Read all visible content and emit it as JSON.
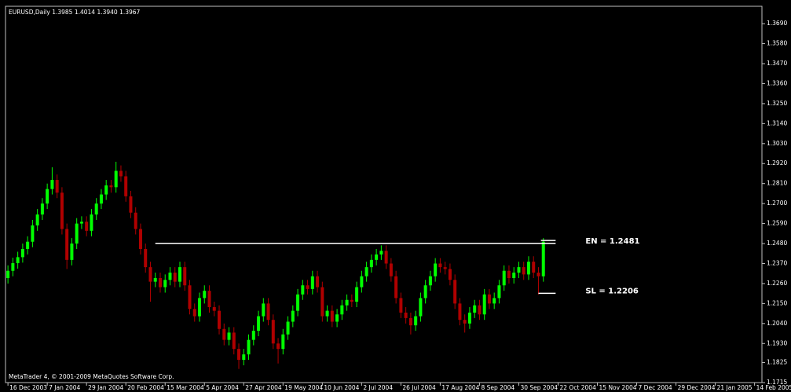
{
  "chart_data": {
    "type": "candlestick",
    "header": "EURUSD,Daily  1.3985 1.4014 1.3940 1.3967",
    "footer": "MetaTrader 4, © 2001-2009 MetaQuotes Software Corp.",
    "up_color": "#00ff00",
    "down_color": "#b00000",
    "line_color": "#ffffff",
    "xlim": [
      -1,
      307
    ],
    "ylim": [
      1.1715,
      1.3777
    ],
    "yticks": [
      {
        "value": 1.369,
        "label": "1.3690"
      },
      {
        "value": 1.358,
        "label": "1.3580"
      },
      {
        "value": 1.347,
        "label": "1.3470"
      },
      {
        "value": 1.336,
        "label": "1.3360"
      },
      {
        "value": 1.325,
        "label": "1.3250"
      },
      {
        "value": 1.314,
        "label": "1.3140"
      },
      {
        "value": 1.303,
        "label": "1.3030"
      },
      {
        "value": 1.292,
        "label": "1.2920"
      },
      {
        "value": 1.281,
        "label": "1.2810"
      },
      {
        "value": 1.27,
        "label": "1.2700"
      },
      {
        "value": 1.259,
        "label": "1.2590"
      },
      {
        "value": 1.248,
        "label": "1.2480"
      },
      {
        "value": 1.237,
        "label": "1.2370"
      },
      {
        "value": 1.226,
        "label": "1.2260"
      },
      {
        "value": 1.215,
        "label": "1.2150"
      },
      {
        "value": 1.204,
        "label": "1.2040"
      },
      {
        "value": 1.193,
        "label": "1.1930"
      },
      1.1825,
      1.1715
    ],
    "xticks": [
      {
        "value": 0,
        "label": "16 Dec 2003"
      },
      {
        "value": 16,
        "label": "7 Jan 2004"
      },
      {
        "value": 32,
        "label": "29 Jan 2004"
      },
      {
        "value": 48,
        "label": "20 Feb 2004"
      },
      {
        "value": 64,
        "label": "15 Mar 2004"
      },
      {
        "value": 80,
        "label": "5 Apr 2004"
      },
      {
        "value": 96,
        "label": "27 Apr 2004"
      },
      {
        "value": 112,
        "label": "19 May 2004"
      },
      {
        "value": 128,
        "label": "10 Jun 2004"
      },
      {
        "value": 144,
        "label": "2 Jul 2004"
      },
      {
        "value": 160,
        "label": "26 Jul 2004"
      },
      {
        "value": 176,
        "label": "17 Aug 2004"
      },
      {
        "value": 192,
        "label": "8 Sep 2004"
      },
      {
        "value": 208,
        "label": "30 Sep 2004"
      },
      {
        "value": 224,
        "label": "22 Oct 2004"
      },
      {
        "value": 240,
        "label": "15 Nov 2004"
      },
      {
        "value": 256,
        "label": "7 Dec 2004"
      },
      {
        "value": 272,
        "label": "29 Dec 2004"
      },
      {
        "value": 288,
        "label": "21 Jan 2005"
      },
      {
        "value": 304,
        "label": "14 Feb 2005"
      }
    ],
    "x": [
      0,
      2,
      4,
      6,
      8,
      10,
      12,
      14,
      16,
      18,
      20,
      22,
      24,
      26,
      28,
      30,
      32,
      34,
      36,
      38,
      40,
      42,
      44,
      46,
      48,
      50,
      52,
      54,
      56,
      58,
      60,
      62,
      64,
      66,
      68,
      70,
      72,
      74,
      76,
      78,
      80,
      82,
      84,
      86,
      88,
      90,
      92,
      94,
      96,
      98,
      100,
      102,
      104,
      106,
      108,
      110,
      112,
      114,
      116,
      118,
      120,
      122,
      124,
      126,
      128,
      130,
      132,
      134,
      136,
      138,
      140,
      142,
      144,
      146,
      148,
      150,
      152,
      154,
      156,
      158,
      160,
      162,
      164,
      166,
      168,
      170,
      172,
      174,
      176,
      178,
      180,
      182,
      184,
      186,
      188,
      190,
      192,
      194,
      196,
      198,
      200,
      202,
      204,
      206,
      208,
      210,
      212,
      214,
      216,
      218
    ],
    "open": [
      1.229,
      1.233,
      1.2372,
      1.2405,
      1.245,
      1.249,
      1.258,
      1.264,
      1.27,
      1.278,
      1.283,
      1.276,
      1.256,
      1.239,
      1.248,
      1.259,
      1.26,
      1.255,
      1.264,
      1.27,
      1.275,
      1.28,
      1.279,
      1.288,
      1.285,
      1.274,
      1.265,
      1.256,
      1.245,
      1.235,
      1.227,
      1.229,
      1.224,
      1.228,
      1.232,
      1.227,
      1.235,
      1.225,
      1.212,
      1.208,
      1.218,
      1.222,
      1.213,
      1.211,
      1.201,
      1.195,
      1.199,
      1.19,
      1.184,
      1.187,
      1.195,
      1.2,
      1.208,
      1.215,
      1.206,
      1.193,
      1.19,
      1.198,
      1.205,
      1.211,
      1.22,
      1.225,
      1.223,
      1.23,
      1.224,
      1.208,
      1.211,
      1.205,
      1.209,
      1.214,
      1.217,
      1.216,
      1.224,
      1.23,
      1.235,
      1.239,
      1.242,
      1.244,
      1.237,
      1.23,
      1.218,
      1.21,
      1.207,
      1.203,
      1.208,
      1.218,
      1.225,
      1.23,
      1.237,
      1.235,
      1.234,
      1.228,
      1.215,
      1.206,
      1.204,
      1.21,
      1.214,
      1.209,
      1.22,
      1.215,
      1.218,
      1.225,
      1.233,
      1.229,
      1.232,
      1.235,
      1.231,
      1.238,
      1.232,
      1.23
    ],
    "high": [
      1.236,
      1.2402,
      1.2435,
      1.248,
      1.252,
      1.261,
      1.267,
      1.273,
      1.281,
      1.29,
      1.286,
      1.279,
      1.259,
      1.251,
      1.262,
      1.263,
      1.263,
      1.267,
      1.273,
      1.278,
      1.283,
      1.283,
      1.293,
      1.291,
      1.288,
      1.277,
      1.268,
      1.259,
      1.248,
      1.238,
      1.232,
      1.232,
      1.231,
      1.235,
      1.235,
      1.238,
      1.238,
      1.228,
      1.215,
      1.221,
      1.225,
      1.225,
      1.216,
      1.214,
      1.204,
      1.202,
      1.202,
      1.193,
      1.19,
      1.198,
      1.203,
      1.211,
      1.218,
      1.218,
      1.209,
      1.196,
      1.201,
      1.208,
      1.214,
      1.223,
      1.228,
      1.228,
      1.233,
      1.233,
      1.227,
      1.214,
      1.214,
      1.212,
      1.217,
      1.22,
      1.22,
      1.227,
      1.233,
      1.238,
      1.242,
      1.245,
      1.247,
      1.247,
      1.24,
      1.233,
      1.221,
      1.213,
      1.21,
      1.211,
      1.221,
      1.228,
      1.233,
      1.24,
      1.24,
      1.238,
      1.237,
      1.231,
      1.218,
      1.209,
      1.213,
      1.217,
      1.217,
      1.223,
      1.223,
      1.221,
      1.228,
      1.236,
      1.236,
      1.235,
      1.238,
      1.238,
      1.241,
      1.241,
      1.235,
      1.251
    ],
    "low": [
      1.226,
      1.23,
      1.2342,
      1.2375,
      1.242,
      1.246,
      1.255,
      1.261,
      1.267,
      1.275,
      1.273,
      1.253,
      1.234,
      1.236,
      1.245,
      1.256,
      1.252,
      1.252,
      1.261,
      1.267,
      1.272,
      1.276,
      1.276,
      1.282,
      1.271,
      1.262,
      1.253,
      1.242,
      1.232,
      1.216,
      1.224,
      1.221,
      1.221,
      1.225,
      1.224,
      1.224,
      1.222,
      1.209,
      1.205,
      1.205,
      1.215,
      1.21,
      1.208,
      1.198,
      1.192,
      1.192,
      1.187,
      1.179,
      1.181,
      1.184,
      1.192,
      1.197,
      1.205,
      1.203,
      1.19,
      1.182,
      1.187,
      1.195,
      1.202,
      1.208,
      1.217,
      1.22,
      1.22,
      1.221,
      1.205,
      1.205,
      1.202,
      1.202,
      1.206,
      1.211,
      1.213,
      1.213,
      1.221,
      1.227,
      1.232,
      1.236,
      1.239,
      1.234,
      1.227,
      1.215,
      1.207,
      1.204,
      1.198,
      1.2,
      1.205,
      1.215,
      1.222,
      1.227,
      1.232,
      1.231,
      1.225,
      1.212,
      1.203,
      1.199,
      1.201,
      1.207,
      1.206,
      1.206,
      1.212,
      1.212,
      1.215,
      1.222,
      1.226,
      1.226,
      1.229,
      1.228,
      1.228,
      1.229,
      1.22,
      1.227
    ],
    "close": [
      1.233,
      1.2372,
      1.2405,
      1.245,
      1.249,
      1.258,
      1.264,
      1.27,
      1.278,
      1.283,
      1.276,
      1.256,
      1.239,
      1.248,
      1.259,
      1.26,
      1.255,
      1.264,
      1.27,
      1.275,
      1.28,
      1.279,
      1.288,
      1.285,
      1.274,
      1.265,
      1.256,
      1.245,
      1.235,
      1.227,
      1.229,
      1.224,
      1.228,
      1.232,
      1.227,
      1.235,
      1.225,
      1.212,
      1.208,
      1.218,
      1.222,
      1.213,
      1.211,
      1.201,
      1.195,
      1.199,
      1.19,
      1.184,
      1.187,
      1.195,
      1.2,
      1.208,
      1.215,
      1.206,
      1.193,
      1.19,
      1.198,
      1.205,
      1.211,
      1.22,
      1.225,
      1.223,
      1.23,
      1.224,
      1.208,
      1.211,
      1.205,
      1.209,
      1.214,
      1.217,
      1.216,
      1.224,
      1.23,
      1.235,
      1.239,
      1.242,
      1.244,
      1.237,
      1.23,
      1.218,
      1.21,
      1.207,
      1.203,
      1.208,
      1.218,
      1.225,
      1.23,
      1.237,
      1.235,
      1.234,
      1.228,
      1.215,
      1.206,
      1.204,
      1.21,
      1.214,
      1.209,
      1.22,
      1.215,
      1.218,
      1.225,
      1.233,
      1.229,
      1.232,
      1.235,
      1.231,
      1.238,
      1.232,
      1.23,
      1.249
    ],
    "hlines": [
      {
        "value": 1.2481,
        "from": 60,
        "to": 223,
        "label": "EN = 1.2481"
      },
      {
        "value": 1.2497,
        "from": 217,
        "to": 223
      },
      {
        "value": 1.2206,
        "from": 216,
        "to": 223,
        "label": "SL = 1.2206"
      }
    ]
  }
}
